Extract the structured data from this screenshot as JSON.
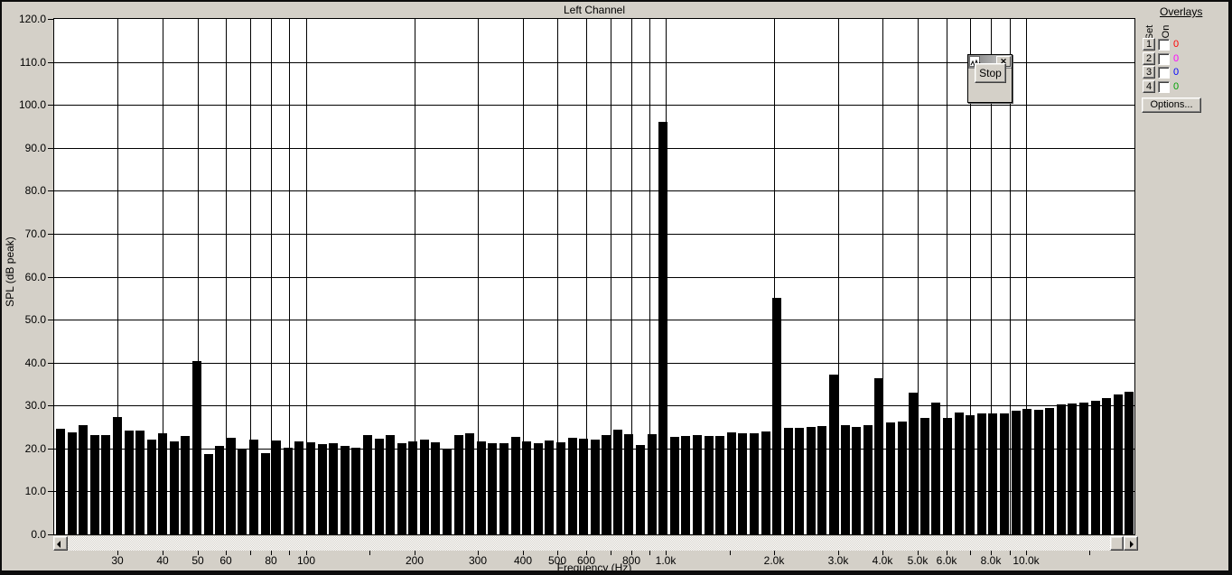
{
  "chart": {
    "title": "Left Channel",
    "ylabel": "SPL (dB peak)",
    "xlabel": "Frequency (Hz)"
  },
  "chart_data": {
    "type": "bar",
    "title": "Left Channel",
    "xlabel": "Frequency (Hz)",
    "ylabel": "SPL (dB peak)",
    "ylim": [
      0.0,
      120.0
    ],
    "x_scale": "log",
    "x_range_hz": [
      20,
      20000
    ],
    "grid": "on",
    "y_ticks": [
      {
        "db": 120,
        "label": "120.0"
      },
      {
        "db": 110,
        "label": "110.0"
      },
      {
        "db": 100,
        "label": "100.0"
      },
      {
        "db": 90,
        "label": "90.0"
      },
      {
        "db": 80,
        "label": "80.0"
      },
      {
        "db": 70,
        "label": "70.0"
      },
      {
        "db": 60,
        "label": "60.0"
      },
      {
        "db": 50,
        "label": "50.0"
      },
      {
        "db": 40,
        "label": "40.0"
      },
      {
        "db": 30,
        "label": "30.0"
      },
      {
        "db": 20,
        "label": "20.0"
      },
      {
        "db": 10,
        "label": "10.0"
      },
      {
        "db": 0,
        "label": "0.0"
      }
    ],
    "x_ticks": [
      {
        "hz": 30,
        "label": "30"
      },
      {
        "hz": 40,
        "label": "40"
      },
      {
        "hz": 50,
        "label": "50"
      },
      {
        "hz": 60,
        "label": "60"
      },
      {
        "hz": 70,
        "label": ""
      },
      {
        "hz": 80,
        "label": "80"
      },
      {
        "hz": 90,
        "label": ""
      },
      {
        "hz": 100,
        "label": "100"
      },
      {
        "hz": 150,
        "label": ""
      },
      {
        "hz": 200,
        "label": "200"
      },
      {
        "hz": 300,
        "label": "300"
      },
      {
        "hz": 400,
        "label": "400"
      },
      {
        "hz": 500,
        "label": "500"
      },
      {
        "hz": 600,
        "label": "600"
      },
      {
        "hz": 700,
        "label": ""
      },
      {
        "hz": 800,
        "label": "800"
      },
      {
        "hz": 900,
        "label": ""
      },
      {
        "hz": 1000,
        "label": "1.0k"
      },
      {
        "hz": 1500,
        "label": ""
      },
      {
        "hz": 2000,
        "label": "2.0k"
      },
      {
        "hz": 3000,
        "label": "3.0k"
      },
      {
        "hz": 4000,
        "label": "4.0k"
      },
      {
        "hz": 5000,
        "label": "5.0k"
      },
      {
        "hz": 6000,
        "label": "6.0k"
      },
      {
        "hz": 7000,
        "label": ""
      },
      {
        "hz": 8000,
        "label": "8.0k"
      },
      {
        "hz": 9000,
        "label": ""
      },
      {
        "hz": 10000,
        "label": "10.0k"
      },
      {
        "hz": 15000,
        "label": ""
      }
    ],
    "x_gridlines_hz": [
      30,
      40,
      50,
      60,
      70,
      80,
      90,
      100,
      200,
      300,
      400,
      500,
      600,
      700,
      800,
      900,
      1000,
      2000,
      3000,
      4000,
      5000,
      6000,
      7000,
      8000,
      9000,
      10000
    ],
    "bar_db_values": [
      24.6,
      23.7,
      25.4,
      23.2,
      23.2,
      27.3,
      24.1,
      24.1,
      22.0,
      23.5,
      21.6,
      23.0,
      40.3,
      18.7,
      20.5,
      22.4,
      19.7,
      22.1,
      18.9,
      21.8,
      20.2,
      21.7,
      21.5,
      21.0,
      21.3,
      20.5,
      20.2,
      23.2,
      22.3,
      23.1,
      21.2,
      21.7,
      22.0,
      21.4,
      19.8,
      23.1,
      23.6,
      21.6,
      21.3,
      21.2,
      22.8,
      21.7,
      21.3,
      21.8,
      21.4,
      22.5,
      22.3,
      22.1,
      23.2,
      24.3,
      23.4,
      20.9,
      23.3,
      96.0,
      22.8,
      23.0,
      23.2,
      23.0,
      22.9,
      23.8,
      23.5,
      23.6,
      23.9,
      55.1,
      24.7,
      24.9,
      25.0,
      25.2,
      37.1,
      25.5,
      25.0,
      25.5,
      36.4,
      26.0,
      26.2,
      32.9,
      27.2,
      30.7,
      27.2,
      28.4,
      27.8,
      28.2,
      28.2,
      28.1,
      28.8,
      29.2,
      28.9,
      29.5,
      30.2,
      30.4,
      30.7,
      31.1,
      31.7,
      32.5,
      33.2
    ],
    "notable_peaks": [
      {
        "hz": 50,
        "db": 40.3
      },
      {
        "hz": 1000,
        "db": 96.0
      },
      {
        "hz": 2000,
        "db": 55.1
      },
      {
        "hz": 3000,
        "db": 37.1
      },
      {
        "hz": 4000,
        "db": 36.4
      },
      {
        "hz": 5000,
        "db": 32.9
      },
      {
        "hz": 6000,
        "db": 30.7
      }
    ]
  },
  "capture_window": {
    "icon": "waveform-icon",
    "close_label": "x",
    "stop_label": "Stop"
  },
  "overlays_panel": {
    "title": "Overlays",
    "set_header": "Set",
    "on_header": "On",
    "rows": [
      {
        "set_label": "1",
        "on_checked": false,
        "value": "0",
        "value_color": "#ff0000"
      },
      {
        "set_label": "2",
        "on_checked": false,
        "value": "0",
        "value_color": "#ff00ff"
      },
      {
        "set_label": "3",
        "on_checked": false,
        "value": "0",
        "value_color": "#0000ff"
      },
      {
        "set_label": "4",
        "on_checked": false,
        "value": "0",
        "value_color": "#00a000"
      }
    ],
    "options_label": "Options..."
  },
  "colors": {
    "background": "#d4d0c8",
    "plot_background": "#ffffff",
    "bar": "#000000",
    "grid": "#000000"
  }
}
